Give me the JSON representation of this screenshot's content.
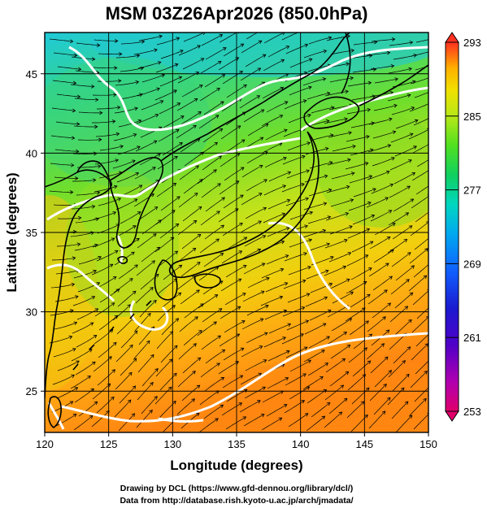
{
  "title": "MSM 03Z26Apr2026 (850.0hPa)",
  "xlabel": "Longitude (degrees)",
  "ylabel": "Latitude  (degrees)",
  "credits": [
    "Drawing by DCL (https://www.gfd-dennou.org/library/dcl/)",
    "Data from http://database.rish.kyoto-u.ac.jp/arch/jmadata/"
  ],
  "map": {
    "lon_range": [
      120,
      150
    ],
    "lat_range": [
      22.4,
      47.6
    ],
    "lon_ticks": [
      {
        "value": 120,
        "label": "120"
      },
      {
        "value": 125,
        "label": "125"
      },
      {
        "value": 130,
        "label": "130"
      },
      {
        "value": 135,
        "label": "135"
      },
      {
        "value": 140,
        "label": "140"
      },
      {
        "value": 145,
        "label": "145"
      },
      {
        "value": 150,
        "label": "150"
      }
    ],
    "lat_ticks": [
      {
        "value": 25,
        "label": "25"
      },
      {
        "value": 30,
        "label": "30"
      },
      {
        "value": 35,
        "label": "35"
      },
      {
        "value": 40,
        "label": "40"
      },
      {
        "value": 45,
        "label": "45"
      }
    ],
    "grid": true,
    "field": "temperature (K) with wind streamlines",
    "colors": {
      "cold": "#2fc9d4",
      "cool": "#3fd66a",
      "mid": "#9ee21f",
      "warm": "#e8d20a",
      "hot": "#ff8a10"
    }
  },
  "colorbar": {
    "min": 253,
    "max": 293,
    "tick_labels": [
      "293",
      "285",
      "277",
      "269",
      "261",
      "253"
    ],
    "tick_values": [
      293,
      285,
      277,
      269,
      261,
      253
    ],
    "colors": [
      "#e0006a",
      "#b000b0",
      "#6a00c8",
      "#1a1ad0",
      "#1060ff",
      "#00a8f0",
      "#00d6c0",
      "#10d060",
      "#50e020",
      "#b8e818",
      "#f0e000",
      "#ffb000",
      "#ff7010",
      "#ff3020"
    ]
  }
}
